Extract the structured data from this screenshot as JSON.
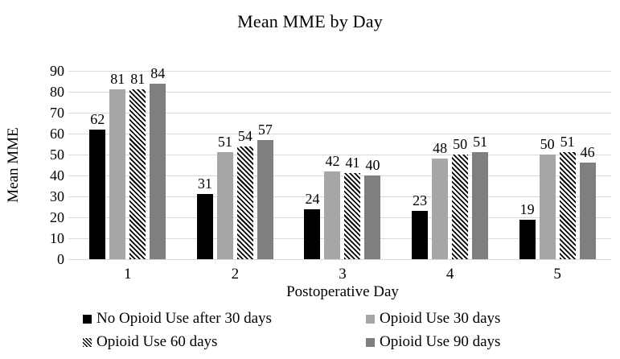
{
  "chart_data": {
    "type": "bar",
    "title": "Mean MME by Day",
    "xlabel": "Postoperative Day",
    "ylabel": "Mean MME",
    "ylim": [
      0,
      90
    ],
    "yticks": [
      0,
      10,
      20,
      30,
      40,
      50,
      60,
      70,
      80,
      90
    ],
    "grid": true,
    "gridline_color": "#d9d9d9",
    "legend_position": "bottom",
    "categories": [
      "1",
      "2",
      "3",
      "4",
      "5"
    ],
    "series": [
      {
        "name": "No Opioid Use after 30 days",
        "values": [
          62,
          31,
          24,
          23,
          19
        ],
        "color": "#000000",
        "pattern": "solid"
      },
      {
        "name": "Opioid Use 30 days",
        "values": [
          81,
          51,
          42,
          48,
          50
        ],
        "color": "#a6a6a6",
        "pattern": "solid"
      },
      {
        "name": "Opioid Use 60 days",
        "values": [
          81,
          54,
          41,
          50,
          51
        ],
        "color": "#000000",
        "pattern": "diagonal-hatch"
      },
      {
        "name": "Opioid Use 90 days",
        "values": [
          84,
          57,
          40,
          51,
          46
        ],
        "color": "#7f7f7f",
        "pattern": "solid"
      }
    ]
  }
}
